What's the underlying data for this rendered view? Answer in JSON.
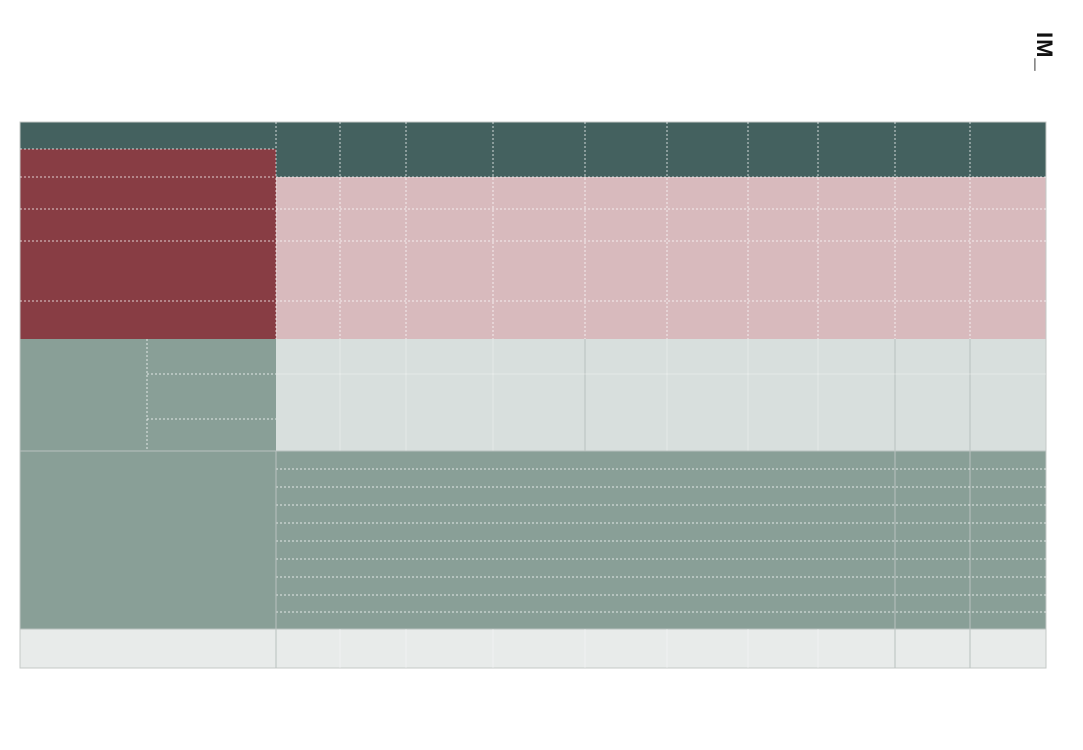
{
  "logo": {
    "text": "IM_"
  }
}
